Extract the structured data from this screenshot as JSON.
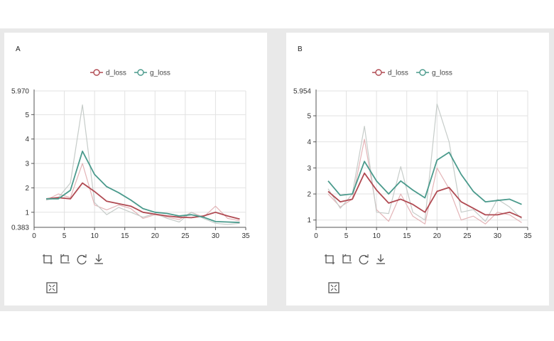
{
  "chart_data": [
    {
      "panel_label": "A",
      "type": "line",
      "legend_position": "top-center",
      "legend": [
        "d_loss",
        "g_loss"
      ],
      "x_ticks": [
        0,
        5,
        10,
        15,
        20,
        25,
        30,
        35
      ],
      "y_ticks": [
        1,
        2,
        3,
        4,
        5
      ],
      "y_min_label": "0.383",
      "y_max_label": "5.970",
      "xlim": [
        0,
        35
      ],
      "ylim": [
        0.383,
        5.97
      ],
      "grid": true,
      "series": [
        {
          "name": "d_loss",
          "color": "#b04a52",
          "x": [
            2,
            4,
            6,
            8,
            10,
            12,
            14,
            16,
            18,
            20,
            22,
            24,
            26,
            28,
            30,
            32,
            34
          ],
          "values": [
            1.55,
            1.6,
            1.55,
            2.2,
            1.85,
            1.45,
            1.35,
            1.25,
            1.0,
            0.92,
            0.85,
            0.8,
            0.78,
            0.85,
            1.0,
            0.85,
            0.72
          ]
        },
        {
          "name": "g_loss",
          "color": "#4a9a8c",
          "x": [
            2,
            4,
            6,
            8,
            10,
            12,
            14,
            16,
            18,
            20,
            22,
            24,
            26,
            28,
            30,
            32,
            34
          ],
          "values": [
            1.55,
            1.55,
            1.9,
            3.5,
            2.55,
            2.05,
            1.8,
            1.5,
            1.15,
            1.0,
            0.95,
            0.85,
            0.9,
            0.8,
            0.62,
            0.6,
            0.58
          ]
        },
        {
          "name": "d_loss raw",
          "color": "#e3b4b7",
          "x": [
            2,
            4,
            6,
            8,
            10,
            12,
            14,
            16,
            18,
            20,
            22,
            24,
            26,
            28,
            30,
            32,
            34
          ],
          "values": [
            1.5,
            1.75,
            1.6,
            3.0,
            1.3,
            1.1,
            1.3,
            1.15,
            0.75,
            0.9,
            0.8,
            0.7,
            1.0,
            0.8,
            1.25,
            0.75,
            0.65
          ]
        },
        {
          "name": "g_loss raw",
          "color": "#c6ccc9",
          "x": [
            2,
            4,
            6,
            8,
            10,
            12,
            14,
            16,
            18,
            20,
            22,
            24,
            26,
            28,
            30,
            32,
            34
          ],
          "values": [
            1.5,
            1.6,
            2.2,
            5.4,
            1.4,
            0.9,
            1.2,
            1.0,
            0.8,
            0.95,
            0.75,
            0.6,
            1.0,
            0.75,
            0.55,
            0.5,
            0.55
          ]
        }
      ]
    },
    {
      "panel_label": "B",
      "type": "line",
      "legend_position": "top-center",
      "legend": [
        "d_loss",
        "g_loss"
      ],
      "x_ticks": [
        0,
        5,
        10,
        15,
        20,
        25,
        30,
        35
      ],
      "y_ticks": [
        1,
        2,
        3,
        4,
        5
      ],
      "y_min_label": "",
      "y_max_label": "5.954",
      "xlim": [
        0,
        35
      ],
      "ylim": [
        0.72,
        5.954
      ],
      "grid": true,
      "series": [
        {
          "name": "d_loss",
          "color": "#b04a52",
          "x": [
            2,
            4,
            6,
            8,
            10,
            12,
            14,
            16,
            18,
            20,
            22,
            24,
            26,
            28,
            30,
            32,
            34
          ],
          "values": [
            2.1,
            1.7,
            1.8,
            2.8,
            2.15,
            1.65,
            1.8,
            1.6,
            1.3,
            2.1,
            2.25,
            1.7,
            1.45,
            1.2,
            1.2,
            1.3,
            1.1
          ]
        },
        {
          "name": "g_loss",
          "color": "#4a9a8c",
          "x": [
            2,
            4,
            6,
            8,
            10,
            12,
            14,
            16,
            18,
            20,
            22,
            24,
            26,
            28,
            30,
            32,
            34
          ],
          "values": [
            2.5,
            1.95,
            2.0,
            3.25,
            2.5,
            2.0,
            2.5,
            2.15,
            1.85,
            3.3,
            3.6,
            2.75,
            2.1,
            1.7,
            1.75,
            1.8,
            1.6
          ]
        },
        {
          "name": "d_loss raw",
          "color": "#e3b4b7",
          "x": [
            2,
            4,
            6,
            8,
            10,
            12,
            14,
            16,
            18,
            20,
            22,
            24,
            26,
            28,
            30,
            32,
            34
          ],
          "values": [
            2.0,
            1.5,
            1.8,
            4.1,
            1.4,
            0.95,
            2.0,
            1.15,
            0.85,
            3.0,
            2.2,
            1.0,
            1.15,
            0.85,
            1.3,
            1.2,
            0.9
          ]
        },
        {
          "name": "g_loss raw",
          "color": "#c6ccc9",
          "x": [
            2,
            4,
            6,
            8,
            10,
            12,
            14,
            16,
            18,
            20,
            22,
            24,
            26,
            28,
            30,
            32,
            34
          ],
          "values": [
            2.2,
            1.45,
            2.0,
            4.6,
            1.3,
            1.25,
            3.05,
            1.3,
            1.0,
            5.45,
            4.0,
            1.3,
            1.4,
            0.95,
            1.8,
            1.5,
            1.05
          ]
        }
      ]
    }
  ],
  "toolbar_icons": [
    "zoom-select-icon",
    "zoom-reset-icon",
    "restore-icon",
    "download-icon"
  ],
  "expand_icon": "expand-icon"
}
